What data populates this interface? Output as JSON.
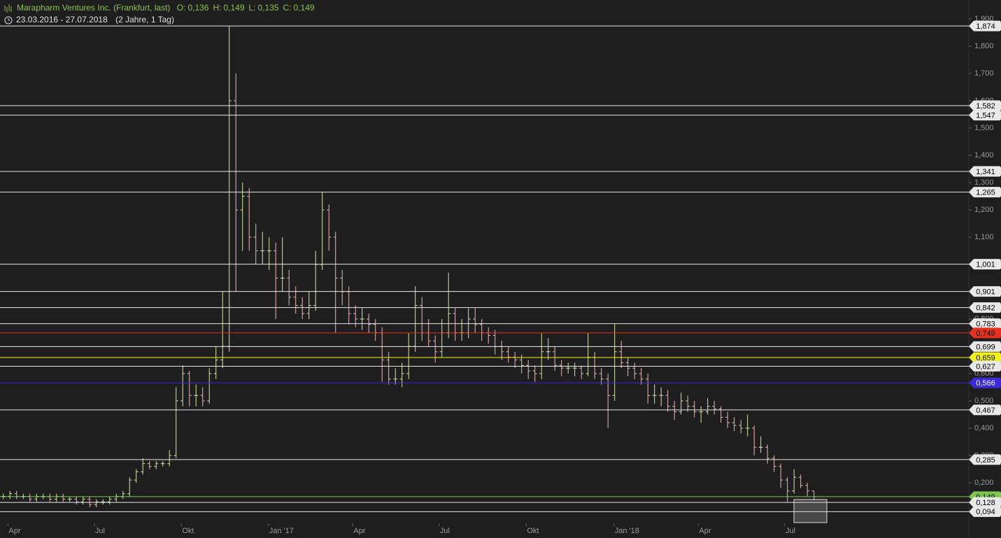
{
  "header": {
    "title": "Marapharm Ventures Inc. (Frankfurt, last)",
    "quote": [
      {
        "key": "O:",
        "text": "0,136"
      },
      {
        "key": "H:",
        "text": "0,149"
      },
      {
        "key": "L:",
        "text": "0,135"
      },
      {
        "key": "C:",
        "text": "0,149"
      }
    ],
    "range": "23.03.2016 - 27.07.2018",
    "period": "(2 Jahre, 1 Tag)"
  },
  "chart_data": {
    "type": "ohlc",
    "up_color": "#d4e6a5",
    "down_color": "#e6b9b9",
    "xlim": [
      0,
      145.8
    ],
    "ylim": [
      0.06,
      1.92
    ],
    "xticks": [
      {
        "value": 1.2,
        "label": "Apr"
      },
      {
        "value": 14.2,
        "label": "Jul"
      },
      {
        "value": 27.3,
        "label": "Okt"
      },
      {
        "value": 40.4,
        "label": "Jan '17"
      },
      {
        "value": 53.1,
        "label": "Apr"
      },
      {
        "value": 66.1,
        "label": "Jul"
      },
      {
        "value": 79.2,
        "label": "Okt"
      },
      {
        "value": 92.4,
        "label": "Jan '18"
      },
      {
        "value": 105.1,
        "label": "Apr"
      },
      {
        "value": 118.1,
        "label": "Jul"
      }
    ],
    "yticks": [
      {
        "value": 0.2,
        "label": "0,200"
      },
      {
        "value": 0.3,
        "label": "0,300"
      },
      {
        "value": 0.4,
        "label": "0,400"
      },
      {
        "value": 0.5,
        "label": "0,500"
      },
      {
        "value": 0.6,
        "label": "0,600"
      },
      {
        "value": 0.7,
        "label": "0,700"
      },
      {
        "value": 0.8,
        "label": "0,800"
      },
      {
        "value": 0.9,
        "label": "0,900"
      },
      {
        "value": 1.0,
        "label": "1,000"
      },
      {
        "value": 1.1,
        "label": "1,100"
      },
      {
        "value": 1.2,
        "label": "1,200"
      },
      {
        "value": 1.3,
        "label": "1,300"
      },
      {
        "value": 1.4,
        "label": "1,400"
      },
      {
        "value": 1.5,
        "label": "1,500"
      },
      {
        "value": 1.6,
        "label": "1,600"
      },
      {
        "value": 1.7,
        "label": "1,700"
      },
      {
        "value": 1.8,
        "label": "1,800"
      },
      {
        "value": 1.9,
        "label": "1,900"
      }
    ],
    "levels": [
      {
        "value": 1.874,
        "label": "1,874",
        "color": "#e8e8e8",
        "text_color": "#000000"
      },
      {
        "value": 1.582,
        "label": "1,582",
        "color": "#e8e8e8",
        "text_color": "#000000"
      },
      {
        "value": 1.547,
        "label": "1,547",
        "color": "#e8e8e8",
        "text_color": "#000000"
      },
      {
        "value": 1.341,
        "label": "1,341",
        "color": "#e8e8e8",
        "text_color": "#000000"
      },
      {
        "value": 1.265,
        "label": "1,265",
        "color": "#e8e8e8",
        "text_color": "#000000"
      },
      {
        "value": 1.001,
        "label": "1,001",
        "color": "#e8e8e8",
        "text_color": "#000000"
      },
      {
        "value": 0.901,
        "label": "0,901",
        "color": "#e8e8e8",
        "text_color": "#000000"
      },
      {
        "value": 0.842,
        "label": "0,842",
        "color": "#e8e8e8",
        "text_color": "#000000"
      },
      {
        "value": 0.783,
        "label": "0,783",
        "color": "#e8e8e8",
        "text_color": "#000000"
      },
      {
        "value": 0.749,
        "label": "0,749",
        "color": "#e8301e",
        "text_color": "#000000"
      },
      {
        "value": 0.699,
        "label": "0,699",
        "color": "#e8e8e8",
        "text_color": "#000000"
      },
      {
        "value": 0.659,
        "label": "0,659",
        "color": "#f2f21e",
        "text_color": "#000000"
      },
      {
        "value": 0.627,
        "label": "0,627",
        "color": "#e8e8e8",
        "text_color": "#000000"
      },
      {
        "value": 0.566,
        "label": "0,566",
        "color": "#3a2ad8",
        "text_color": "#ffffff"
      },
      {
        "value": 0.467,
        "label": "0,467",
        "color": "#e8e8e8",
        "text_color": "#000000"
      },
      {
        "value": 0.285,
        "label": "0,285",
        "color": "#e8e8e8",
        "text_color": "#000000"
      },
      {
        "value": 0.149,
        "label": "0,149",
        "color": "#7ec850",
        "text_color": "#000000"
      },
      {
        "value": 0.128,
        "label": "0,128",
        "color": "#e8e8e8",
        "text_color": "#000000"
      },
      {
        "value": 0.094,
        "label": "0,094",
        "color": "#e8e8e8",
        "text_color": "#000000"
      }
    ],
    "ohlc": [
      [
        0.15,
        0.16,
        0.14,
        0.15
      ],
      [
        0.15,
        0.17,
        0.14,
        0.16
      ],
      [
        0.16,
        0.17,
        0.14,
        0.15
      ],
      [
        0.15,
        0.16,
        0.14,
        0.15
      ],
      [
        0.15,
        0.16,
        0.13,
        0.14
      ],
      [
        0.14,
        0.16,
        0.13,
        0.15
      ],
      [
        0.15,
        0.16,
        0.14,
        0.15
      ],
      [
        0.15,
        0.16,
        0.13,
        0.14
      ],
      [
        0.14,
        0.16,
        0.13,
        0.15
      ],
      [
        0.15,
        0.16,
        0.13,
        0.14
      ],
      [
        0.14,
        0.15,
        0.13,
        0.14
      ],
      [
        0.14,
        0.15,
        0.12,
        0.13
      ],
      [
        0.13,
        0.15,
        0.12,
        0.14
      ],
      [
        0.14,
        0.15,
        0.11,
        0.12
      ],
      [
        0.12,
        0.14,
        0.11,
        0.13
      ],
      [
        0.13,
        0.14,
        0.12,
        0.13
      ],
      [
        0.13,
        0.15,
        0.12,
        0.14
      ],
      [
        0.14,
        0.16,
        0.13,
        0.15
      ],
      [
        0.15,
        0.17,
        0.14,
        0.16
      ],
      [
        0.16,
        0.22,
        0.15,
        0.21
      ],
      [
        0.21,
        0.25,
        0.2,
        0.24
      ],
      [
        0.24,
        0.29,
        0.23,
        0.27
      ],
      [
        0.27,
        0.28,
        0.25,
        0.26
      ],
      [
        0.26,
        0.28,
        0.25,
        0.27
      ],
      [
        0.27,
        0.28,
        0.26,
        0.27
      ],
      [
        0.27,
        0.32,
        0.26,
        0.3
      ],
      [
        0.3,
        0.55,
        0.29,
        0.5
      ],
      [
        0.5,
        0.63,
        0.48,
        0.6
      ],
      [
        0.6,
        0.61,
        0.48,
        0.52
      ],
      [
        0.52,
        0.56,
        0.48,
        0.52
      ],
      [
        0.52,
        0.55,
        0.48,
        0.5
      ],
      [
        0.5,
        0.62,
        0.49,
        0.6
      ],
      [
        0.6,
        0.7,
        0.58,
        0.65
      ],
      [
        0.65,
        0.9,
        0.62,
        0.7
      ],
      [
        0.7,
        1.874,
        0.68,
        1.6
      ],
      [
        1.6,
        1.7,
        0.9,
        1.2
      ],
      [
        1.2,
        1.3,
        1.05,
        1.25
      ],
      [
        1.25,
        1.28,
        1.05,
        1.1
      ],
      [
        1.1,
        1.15,
        1.0,
        1.05
      ],
      [
        1.05,
        1.12,
        1.0,
        1.05
      ],
      [
        1.05,
        1.1,
        0.98,
        1.05
      ],
      [
        1.05,
        1.08,
        0.8,
        0.95
      ],
      [
        0.95,
        1.1,
        0.9,
        0.95
      ],
      [
        0.95,
        0.98,
        0.85,
        0.88
      ],
      [
        0.88,
        0.92,
        0.82,
        0.85
      ],
      [
        0.85,
        0.88,
        0.8,
        0.82
      ],
      [
        0.82,
        0.9,
        0.8,
        0.85
      ],
      [
        0.85,
        1.05,
        0.83,
        1.0
      ],
      [
        1.0,
        1.265,
        0.98,
        1.2
      ],
      [
        1.2,
        1.22,
        1.05,
        1.1
      ],
      [
        1.1,
        1.12,
        0.75,
        0.95
      ],
      [
        0.95,
        0.98,
        0.85,
        0.9
      ],
      [
        0.9,
        0.92,
        0.78,
        0.82
      ],
      [
        0.82,
        0.85,
        0.77,
        0.8
      ],
      [
        0.8,
        0.84,
        0.76,
        0.8
      ],
      [
        0.8,
        0.82,
        0.75,
        0.78
      ],
      [
        0.78,
        0.8,
        0.72,
        0.75
      ],
      [
        0.75,
        0.77,
        0.57,
        0.65
      ],
      [
        0.65,
        0.68,
        0.56,
        0.58
      ],
      [
        0.58,
        0.62,
        0.56,
        0.58
      ],
      [
        0.58,
        0.64,
        0.55,
        0.6
      ],
      [
        0.6,
        0.75,
        0.58,
        0.7
      ],
      [
        0.7,
        0.92,
        0.68,
        0.85
      ],
      [
        0.85,
        0.88,
        0.72,
        0.75
      ],
      [
        0.75,
        0.8,
        0.7,
        0.72
      ],
      [
        0.72,
        0.74,
        0.64,
        0.68
      ],
      [
        0.68,
        0.8,
        0.66,
        0.75
      ],
      [
        0.75,
        0.97,
        0.73,
        0.82
      ],
      [
        0.82,
        0.84,
        0.72,
        0.75
      ],
      [
        0.75,
        0.8,
        0.72,
        0.75
      ],
      [
        0.75,
        0.84,
        0.73,
        0.8
      ],
      [
        0.8,
        0.84,
        0.75,
        0.78
      ],
      [
        0.78,
        0.8,
        0.72,
        0.75
      ],
      [
        0.75,
        0.77,
        0.71,
        0.74
      ],
      [
        0.74,
        0.76,
        0.67,
        0.7
      ],
      [
        0.7,
        0.72,
        0.65,
        0.68
      ],
      [
        0.68,
        0.7,
        0.64,
        0.66
      ],
      [
        0.66,
        0.68,
        0.62,
        0.65
      ],
      [
        0.65,
        0.67,
        0.6,
        0.63
      ],
      [
        0.63,
        0.65,
        0.58,
        0.61
      ],
      [
        0.61,
        0.63,
        0.57,
        0.6
      ],
      [
        0.6,
        0.75,
        0.58,
        0.68
      ],
      [
        0.68,
        0.73,
        0.65,
        0.68
      ],
      [
        0.68,
        0.7,
        0.61,
        0.63
      ],
      [
        0.63,
        0.65,
        0.59,
        0.62
      ],
      [
        0.62,
        0.64,
        0.6,
        0.62
      ],
      [
        0.62,
        0.64,
        0.59,
        0.62
      ],
      [
        0.62,
        0.63,
        0.58,
        0.6
      ],
      [
        0.6,
        0.75,
        0.59,
        0.66
      ],
      [
        0.66,
        0.68,
        0.58,
        0.6
      ],
      [
        0.6,
        0.62,
        0.56,
        0.58
      ],
      [
        0.58,
        0.6,
        0.4,
        0.52
      ],
      [
        0.52,
        0.783,
        0.5,
        0.68
      ],
      [
        0.68,
        0.72,
        0.62,
        0.64
      ],
      [
        0.64,
        0.66,
        0.59,
        0.62
      ],
      [
        0.62,
        0.64,
        0.58,
        0.6
      ],
      [
        0.6,
        0.62,
        0.56,
        0.58
      ],
      [
        0.58,
        0.6,
        0.49,
        0.52
      ],
      [
        0.52,
        0.56,
        0.49,
        0.52
      ],
      [
        0.52,
        0.55,
        0.48,
        0.52
      ],
      [
        0.52,
        0.54,
        0.46,
        0.48
      ],
      [
        0.48,
        0.5,
        0.43,
        0.46
      ],
      [
        0.46,
        0.53,
        0.45,
        0.5
      ],
      [
        0.5,
        0.52,
        0.46,
        0.48
      ],
      [
        0.48,
        0.5,
        0.44,
        0.46
      ],
      [
        0.46,
        0.48,
        0.42,
        0.46
      ],
      [
        0.46,
        0.51,
        0.45,
        0.48
      ],
      [
        0.48,
        0.5,
        0.45,
        0.47
      ],
      [
        0.47,
        0.48,
        0.42,
        0.44
      ],
      [
        0.44,
        0.46,
        0.4,
        0.42
      ],
      [
        0.42,
        0.44,
        0.39,
        0.41
      ],
      [
        0.41,
        0.43,
        0.38,
        0.4
      ],
      [
        0.4,
        0.45,
        0.37,
        0.4
      ],
      [
        0.4,
        0.41,
        0.3,
        0.33
      ],
      [
        0.33,
        0.37,
        0.31,
        0.33
      ],
      [
        0.33,
        0.34,
        0.27,
        0.29
      ],
      [
        0.29,
        0.3,
        0.24,
        0.26
      ],
      [
        0.26,
        0.27,
        0.18,
        0.21
      ],
      [
        0.21,
        0.22,
        0.13,
        0.17
      ],
      [
        0.17,
        0.25,
        0.16,
        0.22
      ],
      [
        0.22,
        0.23,
        0.18,
        0.19
      ],
      [
        0.19,
        0.2,
        0.15,
        0.17
      ],
      [
        0.17,
        0.17,
        0.135,
        0.149
      ]
    ]
  }
}
